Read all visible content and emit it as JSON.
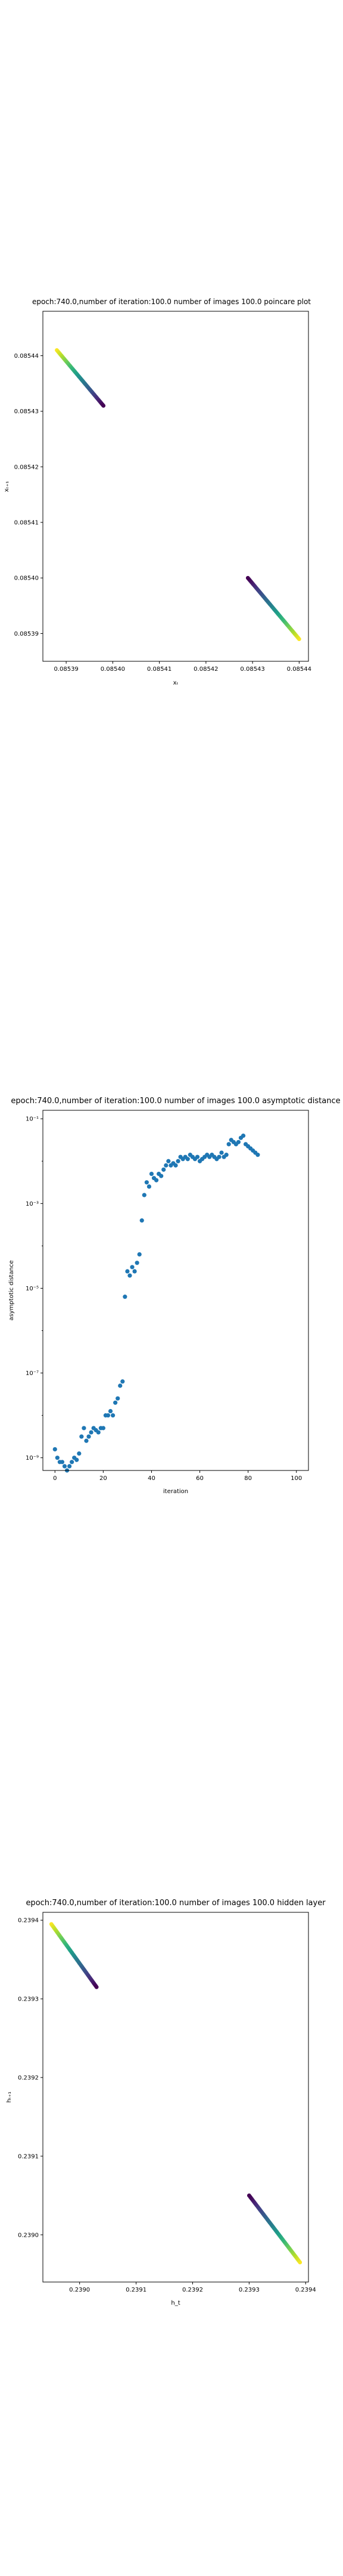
{
  "chart_data": [
    {
      "type": "scatter",
      "title": "epoch:740.0,number of iteration:100.0 number of images 100.0 poincare plot",
      "xlabel": "xₜ",
      "ylabel": "xₜ₊₁",
      "xlim": [
        0.085385,
        0.085442
      ],
      "ylim": [
        0.085385,
        0.085448
      ],
      "xticks": [
        "0.08539",
        "0.08540",
        "0.08541",
        "0.08542",
        "0.08543",
        "0.08544"
      ],
      "yticks": [
        "0.08539",
        "0.08540",
        "0.08541",
        "0.08542",
        "0.08543",
        "0.08544"
      ],
      "colormap": "viridis",
      "series": [
        {
          "x_start": 0.085388,
          "y_start": 0.085441,
          "x_end": 0.085398,
          "y_end": 0.085431,
          "color_start": "#fde725",
          "color_end": "#440154"
        },
        {
          "x_start": 0.08544,
          "y_start": 0.085389,
          "x_end": 0.085429,
          "y_end": 0.0854,
          "color_start": "#fde725",
          "color_end": "#440154"
        }
      ]
    },
    {
      "type": "scatter",
      "title": "epoch:740.0,number of iteration:100.0  number of images 100.0 asymptotic distance",
      "xlabel": "iteration",
      "ylabel": "asymptotic distance",
      "xlim": [
        -5,
        105
      ],
      "ylim_log10": [
        -9.3,
        -0.8
      ],
      "yscale": "log",
      "xticks": [
        "0",
        "20",
        "40",
        "60",
        "80",
        "100"
      ],
      "yticks": [
        "10⁻⁹",
        "10⁻⁷",
        "10⁻⁵",
        "10⁻³",
        "10⁻¹"
      ],
      "marker_color": "#1f77b4",
      "log10_values": [
        -8.8,
        -9.0,
        -9.1,
        -9.1,
        -9.2,
        -9.3,
        -9.2,
        -9.1,
        -9.0,
        -9.05,
        -8.9,
        -8.5,
        -8.3,
        -8.6,
        -8.5,
        -8.4,
        -8.3,
        -8.35,
        -8.4,
        -8.3,
        -8.3,
        -8.0,
        -8.0,
        -7.9,
        -8.0,
        -7.7,
        -7.6,
        -7.3,
        -7.2,
        -5.2,
        -4.6,
        -4.7,
        -4.5,
        -4.6,
        -4.4,
        -4.2,
        -3.4,
        -2.8,
        -2.5,
        -2.6,
        -2.3,
        -2.4,
        -2.45,
        -2.3,
        -2.35,
        -2.2,
        -2.1,
        -2.0,
        -2.1,
        -2.05,
        -2.1,
        -2.0,
        -1.9,
        -1.95,
        -1.9,
        -1.95,
        -1.85,
        -1.9,
        -1.95,
        -1.9,
        -2.0,
        -1.95,
        -1.9,
        -1.85,
        -1.9,
        -1.85,
        -1.9,
        -1.95,
        -1.9,
        -1.8,
        -1.9,
        -1.85,
        -1.6,
        -1.5,
        -1.55,
        -1.6,
        -1.55,
        -1.45,
        -1.4,
        -1.6,
        -1.65,
        -1.7,
        -1.75,
        -1.8,
        -1.85
      ]
    },
    {
      "type": "scatter",
      "title": "epoch:740.0,number of iteration:100.0  number of images 100.0 hidden layer",
      "xlabel": "h_t",
      "ylabel": "hₜ₊₁",
      "xlim": [
        0.238935,
        0.239405
      ],
      "ylim": [
        0.23894,
        0.23941
      ],
      "xticks": [
        "0.2390",
        "0.2391",
        "0.2392",
        "0.2393",
        "0.2394"
      ],
      "yticks": [
        "0.2390",
        "0.2391",
        "0.2392",
        "0.2393",
        "0.2394"
      ],
      "colormap": "viridis",
      "series": [
        {
          "x_start": 0.23895,
          "y_start": 0.239395,
          "x_end": 0.23903,
          "y_end": 0.239315,
          "color_start": "#fde725",
          "color_end": "#440154"
        },
        {
          "x_start": 0.23939,
          "y_start": 0.238965,
          "x_end": 0.2393,
          "y_end": 0.23905,
          "color_start": "#fde725",
          "color_end": "#440154"
        }
      ]
    }
  ]
}
